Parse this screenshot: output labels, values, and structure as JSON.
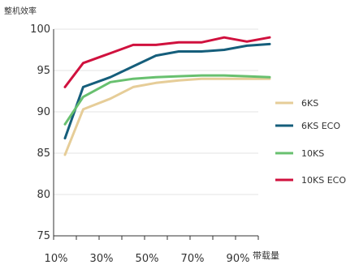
{
  "chart_data": {
    "type": "line",
    "title": "",
    "ylabel": "整机效率",
    "xlabel": "带载量",
    "ylim": [
      75,
      100
    ],
    "xlim": [
      10,
      100
    ],
    "yticks": [
      "75",
      "80",
      "85",
      "90",
      "95",
      "100"
    ],
    "xticks": [
      "10%",
      "30%",
      "50%",
      "70%",
      "90%"
    ],
    "grid": "horizontal",
    "legend": "right",
    "x": [
      15,
      23,
      35,
      45,
      55,
      65,
      75,
      85,
      95,
      105
    ],
    "series": [
      {
        "name": "6KS",
        "color": "#E6CD98",
        "values": [
          84.8,
          90.3,
          91.6,
          93.0,
          93.5,
          93.8,
          94.0,
          94.0,
          94.0,
          94.0
        ]
      },
      {
        "name": "6KS ECO",
        "color": "#155E7B",
        "values": [
          86.8,
          93.0,
          94.2,
          95.5,
          96.8,
          97.3,
          97.3,
          97.5,
          98.0,
          98.2
        ]
      },
      {
        "name": "10KS",
        "color": "#68C06F",
        "values": [
          88.5,
          91.8,
          93.6,
          94.0,
          94.2,
          94.3,
          94.4,
          94.4,
          94.3,
          94.2
        ]
      },
      {
        "name": "10KS ECO",
        "color": "#D0113E",
        "values": [
          93.0,
          95.9,
          97.1,
          98.1,
          98.1,
          98.4,
          98.4,
          99.0,
          98.5,
          99.0
        ]
      }
    ]
  }
}
